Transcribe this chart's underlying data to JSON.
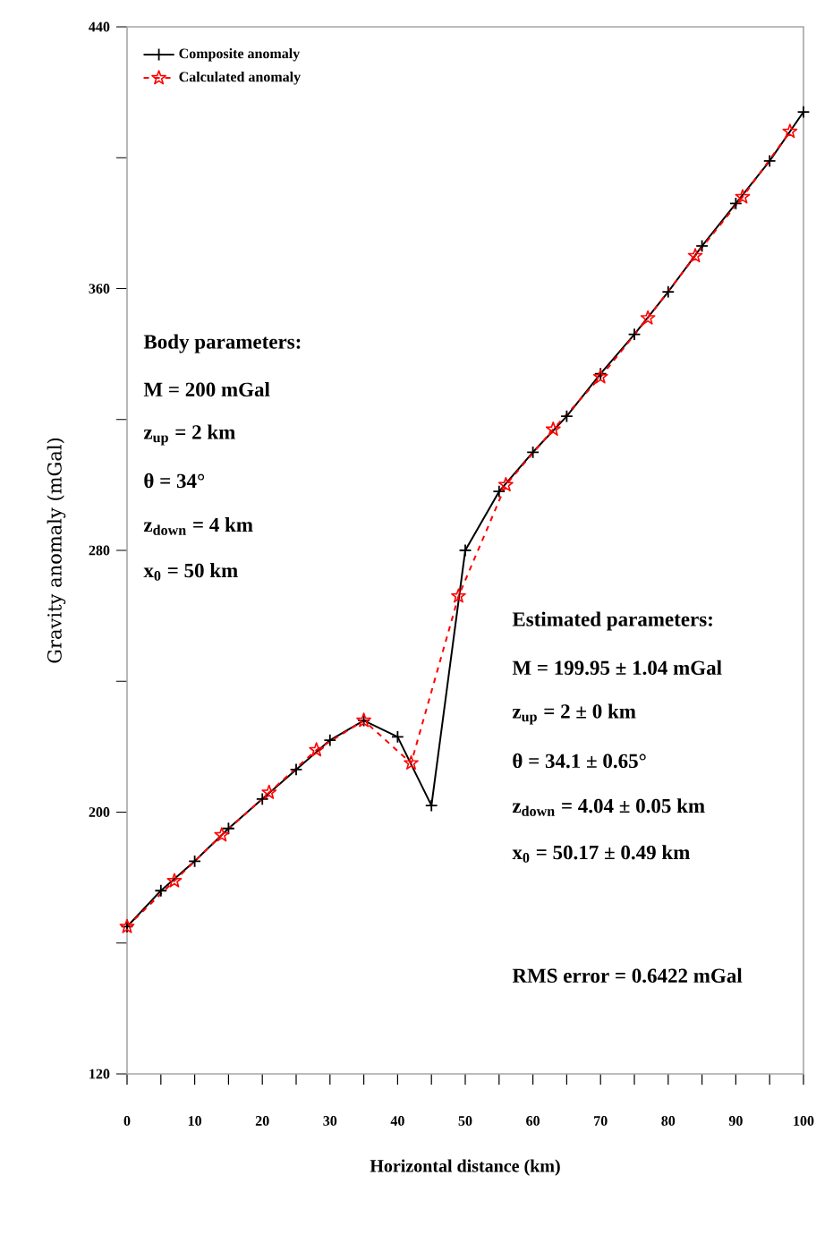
{
  "chart_data": {
    "type": "line",
    "xlabel": "Horizontal distance (km)",
    "ylabel": "Gravity anomaly (mGal)",
    "xlim": [
      0,
      100
    ],
    "ylim": [
      120,
      440
    ],
    "xticks": [
      0,
      {
        "value": 5,
        "label": null
      },
      10,
      {
        "value": 15,
        "label": null
      },
      20,
      {
        "value": 25,
        "label": null
      },
      30,
      {
        "value": 35,
        "label": null
      },
      40,
      {
        "value": 45,
        "label": null
      },
      50,
      {
        "value": 55,
        "label": null
      },
      60,
      {
        "value": 65,
        "label": null
      },
      70,
      {
        "value": 75,
        "label": null
      },
      80,
      {
        "value": 85,
        "label": null
      },
      90,
      {
        "value": 95,
        "label": null
      },
      100
    ],
    "yticks": [
      120,
      {
        "value": 160,
        "label": null
      },
      200,
      {
        "value": 240,
        "label": null
      },
      280,
      {
        "value": 320,
        "label": null
      },
      360,
      {
        "value": 400,
        "label": null
      },
      440
    ],
    "series": [
      {
        "name": "Composite anomaly",
        "color": "#000000",
        "marker": "cross",
        "line_style": "solid",
        "x": [
          0,
          5,
          10,
          15,
          20,
          25,
          30,
          35,
          40,
          45,
          50,
          55,
          60,
          65,
          70,
          75,
          80,
          85,
          90,
          95,
          100
        ],
        "values": [
          165,
          176,
          185,
          195,
          204,
          213,
          222,
          228,
          223,
          202,
          280,
          298,
          310,
          321,
          334,
          346,
          359,
          373,
          386,
          399,
          414
        ]
      },
      {
        "name": "Calculated anomaly",
        "color": "#ff0000",
        "marker": "star",
        "line_style": "dashed",
        "x": [
          0,
          7,
          14,
          21,
          28,
          35,
          42,
          49,
          56,
          63,
          70,
          77,
          84,
          91,
          98
        ],
        "values": [
          165,
          179,
          193,
          206,
          219,
          228,
          215,
          266,
          300,
          317,
          333,
          351,
          370,
          388,
          408
        ]
      }
    ],
    "legend": "top left",
    "annotations": [
      "Body parameters:",
      "M = 200 mGal",
      "z$_{up}$ = 2 km",
      "θ = 34°",
      "z$_{down}$ = 4 km",
      "x$_{0}$ = 50 km",
      "Estimated parameters:",
      "M = 199.95 ± 1.04 mGal",
      "z$_{up}$ = 2 ± 0 km",
      "θ = 34.1 ± 0.65°",
      "z$_{down}$ = 4.04 ± 0.05 km",
      "x$_{0}$ = 50.17 ± 0.49 km",
      "RMS error = 0.6422 mGal"
    ]
  }
}
